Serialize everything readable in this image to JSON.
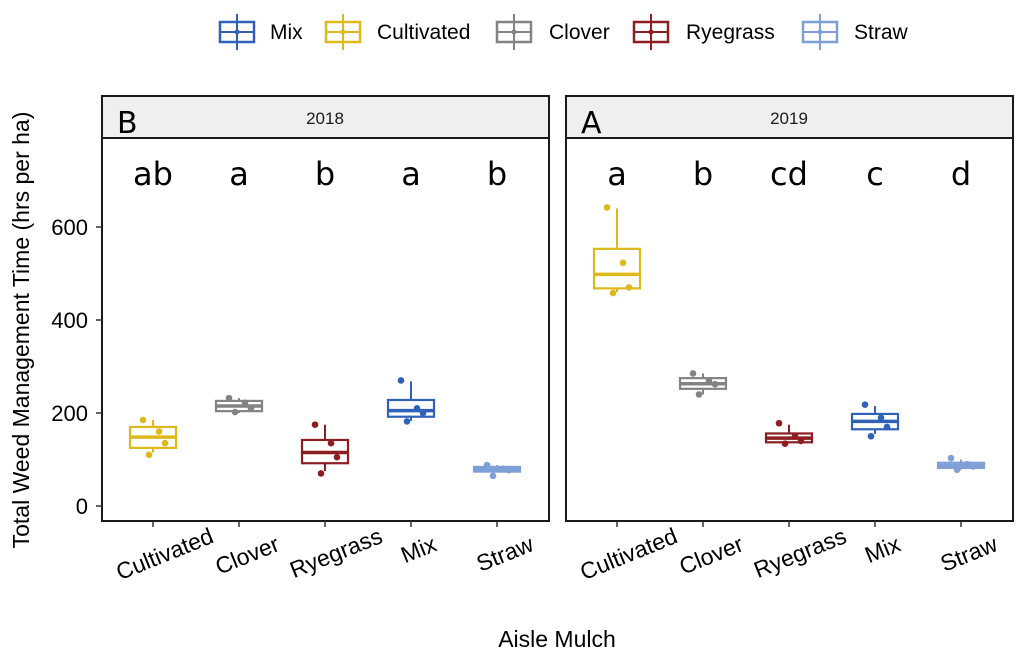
{
  "chart_data": {
    "type": "box",
    "ylabel": "Total Weed Management Time (hrs per ha)",
    "xlabel": "Aisle Mulch",
    "ylim": [
      -25,
      760
    ],
    "yticks": [
      0,
      200,
      400,
      600
    ],
    "categories": [
      "Cultivated",
      "Clover",
      "Ryegrass",
      "Mix",
      "Straw"
    ],
    "legend": {
      "position": "top",
      "entries": [
        {
          "name": "Mix",
          "color": "#2f62b6"
        },
        {
          "name": "Cultivated",
          "color": "#dfb81c"
        },
        {
          "name": "Clover",
          "color": "#838383"
        },
        {
          "name": "Ryegrass",
          "color": "#8c1d20"
        },
        {
          "name": "Straw",
          "color": "#7f9fd8"
        }
      ]
    },
    "panels": [
      {
        "strip": "2018",
        "letter": "B",
        "groups": [
          {
            "category": "Cultivated",
            "color": "#dfb81c",
            "letter": "ab",
            "min": 115,
            "q1": 125,
            "median": 148,
            "q3": 170,
            "max": 185,
            "points": [
              185,
              160,
              135,
              110
            ]
          },
          {
            "category": "Clover",
            "color": "#838383",
            "letter": "a",
            "min": 200,
            "q1": 204,
            "median": 215,
            "q3": 226,
            "max": 232,
            "points": [
              232,
              222,
              210,
              202
            ]
          },
          {
            "category": "Ryegrass",
            "color": "#8c1d20",
            "letter": "b",
            "min": 75,
            "q1": 92,
            "median": 115,
            "q3": 142,
            "max": 175,
            "points": [
              175,
              135,
              105,
              70
            ]
          },
          {
            "category": "Mix",
            "color": "#2f62b6",
            "letter": "a",
            "min": 183,
            "q1": 192,
            "median": 205,
            "q3": 228,
            "max": 268,
            "points": [
              270,
              210,
              200,
              182
            ]
          },
          {
            "category": "Straw",
            "color": "#7f9fd8",
            "letter": "b",
            "min": 72,
            "q1": 74,
            "median": 79,
            "q3": 84,
            "max": 88,
            "points": [
              88,
              80,
              77,
              65
            ]
          }
        ]
      },
      {
        "strip": "2019",
        "letter": "A",
        "groups": [
          {
            "category": "Cultivated",
            "color": "#dfb81c",
            "letter": "a",
            "min": 460,
            "q1": 468,
            "median": 498,
            "q3": 553,
            "max": 640,
            "points": [
              642,
              523,
              470,
              458
            ]
          },
          {
            "category": "Clover",
            "color": "#838383",
            "letter": "b",
            "min": 240,
            "q1": 252,
            "median": 263,
            "q3": 275,
            "max": 285,
            "points": [
              285,
              270,
              262,
              240
            ]
          },
          {
            "category": "Ryegrass",
            "color": "#8c1d20",
            "letter": "cd",
            "min": 135,
            "q1": 137,
            "median": 146,
            "q3": 156,
            "max": 175,
            "points": [
              178,
              150,
              140,
              134
            ]
          },
          {
            "category": "Mix",
            "color": "#2f62b6",
            "letter": "c",
            "min": 155,
            "q1": 165,
            "median": 182,
            "q3": 198,
            "max": 215,
            "points": [
              218,
              190,
              170,
              150
            ]
          },
          {
            "category": "Straw",
            "color": "#7f9fd8",
            "letter": "d",
            "min": 78,
            "q1": 82,
            "median": 87,
            "q3": 93,
            "max": 100,
            "points": [
              103,
              90,
              85,
              78
            ]
          }
        ]
      }
    ]
  }
}
